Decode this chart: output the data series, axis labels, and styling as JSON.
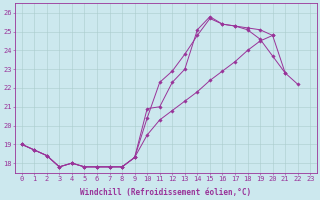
{
  "xlabel": "Windchill (Refroidissement éolien,°C)",
  "bg_color": "#cce8ee",
  "grid_color": "#aacccc",
  "line_color": "#993399",
  "xlim": [
    -0.5,
    23.5
  ],
  "ylim": [
    17.5,
    26.5
  ],
  "yticks": [
    18,
    19,
    20,
    21,
    22,
    23,
    24,
    25,
    26
  ],
  "xticks": [
    0,
    1,
    2,
    3,
    4,
    5,
    6,
    7,
    8,
    9,
    10,
    11,
    12,
    13,
    14,
    15,
    16,
    17,
    18,
    19,
    20,
    21,
    22,
    23
  ],
  "series1_x": [
    0,
    1,
    2,
    3,
    4,
    5,
    6,
    7,
    8,
    9,
    10,
    11,
    12,
    13,
    14,
    15,
    16,
    17,
    18,
    19,
    20,
    21,
    22,
    23
  ],
  "series1_y": [
    19.0,
    18.7,
    18.4,
    17.8,
    18.0,
    17.8,
    17.8,
    17.8,
    17.8,
    18.3,
    20.4,
    22.3,
    22.9,
    23.8,
    24.8,
    25.7,
    25.4,
    25.3,
    25.1,
    24.6,
    23.7,
    22.8,
    null,
    null
  ],
  "series2_x": [
    0,
    1,
    2,
    3,
    4,
    5,
    6,
    7,
    8,
    9,
    10,
    11,
    12,
    13,
    14,
    15,
    16,
    17,
    18,
    19,
    20,
    21,
    22,
    23
  ],
  "series2_y": [
    19.0,
    18.7,
    18.4,
    17.8,
    18.0,
    17.8,
    17.8,
    17.8,
    17.8,
    18.3,
    20.9,
    21.0,
    22.3,
    23.0,
    25.1,
    25.8,
    25.4,
    25.3,
    25.2,
    25.1,
    24.8,
    null,
    null,
    null
  ],
  "series3_x": [
    0,
    1,
    2,
    3,
    4,
    5,
    6,
    7,
    8,
    9,
    10,
    11,
    12,
    13,
    14,
    15,
    16,
    17,
    18,
    19,
    20,
    21,
    22,
    23
  ],
  "series3_y": [
    19.0,
    18.7,
    18.4,
    17.8,
    18.0,
    17.8,
    17.8,
    17.8,
    17.8,
    18.3,
    19.5,
    20.3,
    20.8,
    21.3,
    21.8,
    22.4,
    22.9,
    23.4,
    24.0,
    24.5,
    24.8,
    22.8,
    22.2,
    null
  ],
  "xlabel_fontsize": 5.5,
  "tick_fontsize": 5.0
}
